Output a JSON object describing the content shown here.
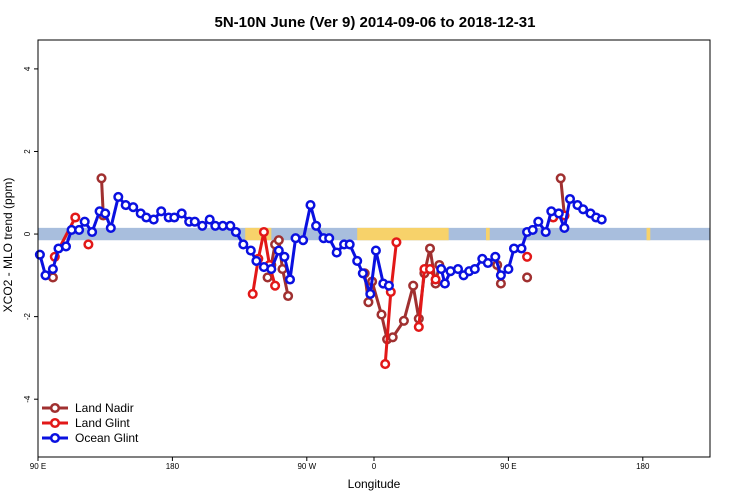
{
  "chart_data": {
    "type": "line",
    "title": "5N-10N June (Ver 9)   2014-09-06 to 2018-12-31",
    "xlabel": "Longitude",
    "ylabel": "XCO2 - MLO trend (ppm)",
    "xlim": [
      -180,
      180
    ],
    "ylim": [
      -5.4,
      4.7
    ],
    "x_ticks": [
      {
        "value": -180,
        "label": "90 E"
      },
      {
        "value": -108,
        "label": "180"
      },
      {
        "value": -36,
        "label": "90 W"
      },
      {
        "value": 0,
        "label": "0"
      },
      {
        "value": 72,
        "label": "90 E"
      },
      {
        "value": 144,
        "label": "180"
      }
    ],
    "y_ticks": [
      {
        "value": -4,
        "label": "-4"
      },
      {
        "value": -2,
        "label": "-2"
      },
      {
        "value": 0,
        "label": "0"
      },
      {
        "value": 2,
        "label": "2"
      },
      {
        "value": 4,
        "label": "4"
      }
    ],
    "legend_position": "bottom-left",
    "background_band": {
      "y_range": [
        -0.15,
        0.15
      ],
      "ocean_color": "#a8bedd",
      "land_color": "#f7d26a"
    },
    "land_spans": [
      [
        -69,
        -55
      ],
      [
        -9,
        40
      ],
      [
        60,
        62
      ],
      [
        146,
        148
      ]
    ],
    "series": [
      {
        "name": "Land Nadir",
        "color": "#a03030",
        "segments": [
          [
            [
              -172,
              -1.05
            ]
          ],
          [
            [
              -146,
              1.35
            ],
            [
              -145,
              0.45
            ]
          ],
          [
            [
              -57,
              -1.05
            ],
            [
              -55,
              -0.75
            ],
            [
              -53,
              -0.25
            ],
            [
              -51,
              -0.15
            ],
            [
              -49,
              -0.85
            ],
            [
              -46,
              -1.5
            ]
          ],
          [
            [
              -5,
              -0.95
            ],
            [
              -3,
              -1.65
            ],
            [
              -1,
              -1.15
            ],
            [
              4,
              -1.95
            ],
            [
              7,
              -2.55
            ],
            [
              10,
              -2.5
            ],
            [
              16,
              -2.1
            ],
            [
              21,
              -1.25
            ],
            [
              24,
              -2.05
            ],
            [
              27,
              -0.95
            ],
            [
              30,
              -0.35
            ],
            [
              33,
              -1.2
            ],
            [
              35,
              -0.75
            ]
          ],
          [
            [
              66,
              -0.75
            ],
            [
              68,
              -1.2
            ]
          ],
          [
            [
              82,
              -1.05
            ]
          ],
          [
            [
              100,
              1.35
            ],
            [
              102,
              0.45
            ]
          ]
        ]
      },
      {
        "name": "Land Glint",
        "color": "#e21818",
        "segments": [
          [
            [
              -171,
              -0.55
            ],
            [
              -160,
              0.4
            ]
          ],
          [
            [
              -153,
              -0.25
            ]
          ],
          [
            [
              -65,
              -1.45
            ],
            [
              -62,
              -0.6
            ],
            [
              -59,
              0.05
            ],
            [
              -56,
              -0.75
            ],
            [
              -53,
              -1.25
            ]
          ],
          [
            [
              6,
              -3.15
            ],
            [
              9,
              -1.4
            ],
            [
              12,
              -0.2
            ]
          ],
          [
            [
              24,
              -2.25
            ],
            [
              27,
              -0.85
            ],
            [
              30,
              -0.85
            ],
            [
              33,
              -1.1
            ]
          ],
          [
            [
              82,
              -0.55
            ]
          ],
          [
            [
              96,
              0.4
            ]
          ],
          [
            [
              102,
              0.45
            ]
          ]
        ]
      },
      {
        "name": "Ocean Glint",
        "color": "#0a10e0",
        "segments": [
          [
            [
              -179,
              -0.5
            ],
            [
              -176,
              -1.0
            ],
            [
              -172,
              -0.85
            ],
            [
              -169,
              -0.35
            ],
            [
              -165,
              -0.3
            ],
            [
              -162,
              0.1
            ],
            [
              -158,
              0.1
            ],
            [
              -155,
              0.3
            ],
            [
              -151,
              0.05
            ],
            [
              -147,
              0.55
            ],
            [
              -144,
              0.5
            ],
            [
              -141,
              0.15
            ],
            [
              -137,
              0.9
            ],
            [
              -133,
              0.7
            ],
            [
              -129,
              0.65
            ],
            [
              -125,
              0.5
            ],
            [
              -122,
              0.4
            ],
            [
              -118,
              0.35
            ],
            [
              -114,
              0.55
            ],
            [
              -110,
              0.4
            ],
            [
              -107,
              0.4
            ],
            [
              -103,
              0.5
            ],
            [
              -99,
              0.3
            ],
            [
              -96,
              0.3
            ],
            [
              -92,
              0.2
            ],
            [
              -88,
              0.35
            ],
            [
              -85,
              0.2
            ],
            [
              -81,
              0.2
            ],
            [
              -77,
              0.2
            ],
            [
              -74,
              0.05
            ],
            [
              -70,
              -0.25
            ],
            [
              -66,
              -0.4
            ],
            [
              -63,
              -0.65
            ],
            [
              -59,
              -0.8
            ],
            [
              -55,
              -0.85
            ],
            [
              -51,
              -0.4
            ],
            [
              -48,
              -0.55
            ],
            [
              -45,
              -1.1
            ],
            [
              -42,
              -0.1
            ],
            [
              -38,
              -0.15
            ],
            [
              -34,
              0.7
            ],
            [
              -31,
              0.2
            ],
            [
              -27,
              -0.1
            ],
            [
              -24,
              -0.1
            ],
            [
              -20,
              -0.45
            ],
            [
              -16,
              -0.25
            ],
            [
              -13,
              -0.25
            ],
            [
              -9,
              -0.65
            ],
            [
              -6,
              -0.95
            ],
            [
              -2,
              -1.45
            ],
            [
              1,
              -0.4
            ],
            [
              5,
              -1.2
            ],
            [
              8,
              -1.25
            ]
          ],
          [
            [
              36,
              -0.85
            ],
            [
              38,
              -1.2
            ],
            [
              41,
              -0.9
            ],
            [
              45,
              -0.85
            ],
            [
              48,
              -1.0
            ],
            [
              51,
              -0.9
            ],
            [
              54,
              -0.85
            ],
            [
              58,
              -0.6
            ],
            [
              61,
              -0.7
            ],
            [
              65,
              -0.55
            ],
            [
              68,
              -1.0
            ],
            [
              72,
              -0.85
            ],
            [
              75,
              -0.35
            ],
            [
              79,
              -0.35
            ],
            [
              82,
              0.05
            ],
            [
              85,
              0.1
            ],
            [
              88,
              0.3
            ],
            [
              92,
              0.05
            ],
            [
              95,
              0.55
            ],
            [
              99,
              0.5
            ],
            [
              102,
              0.15
            ],
            [
              105,
              0.85
            ],
            [
              109,
              0.7
            ],
            [
              112,
              0.6
            ],
            [
              116,
              0.5
            ],
            [
              119,
              0.4
            ],
            [
              122,
              0.35
            ]
          ]
        ]
      }
    ]
  }
}
